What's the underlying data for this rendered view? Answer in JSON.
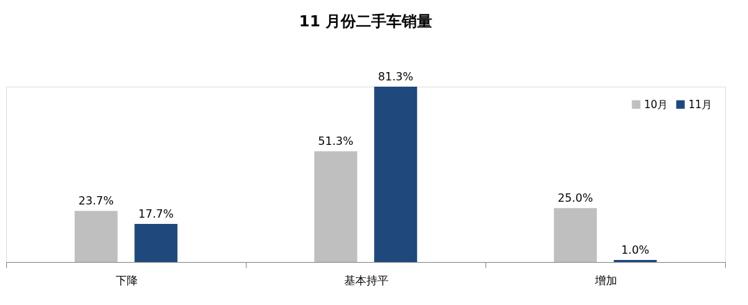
{
  "chart_data": {
    "type": "bar",
    "title": "11 月份二手车销量",
    "categories": [
      "下降",
      "基本持平",
      "增加"
    ],
    "series": [
      {
        "name": "10月",
        "color": "#bfbfbf",
        "values": [
          23.7,
          51.3,
          25.0
        ],
        "value_labels": [
          "23.7%",
          "51.3%",
          "25.0%"
        ]
      },
      {
        "name": "11月",
        "color": "#1f497d",
        "values": [
          17.7,
          81.3,
          1.0
        ],
        "value_labels": [
          "17.7%",
          "81.3%",
          "1.0%"
        ]
      }
    ],
    "legend": "top right",
    "grid": false
  }
}
